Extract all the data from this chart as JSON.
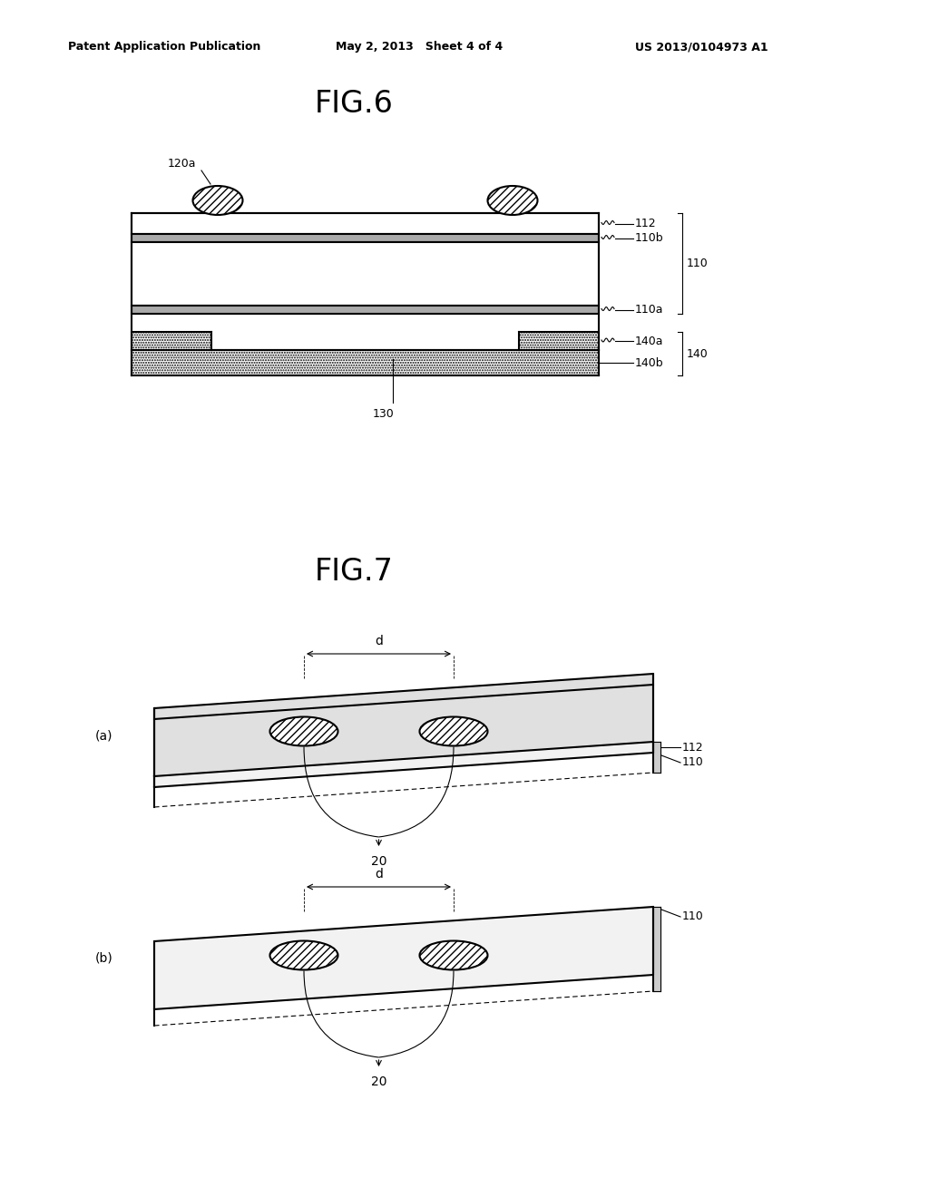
{
  "bg_color": "#ffffff",
  "header_left": "Patent Application Publication",
  "header_mid": "May 2, 2013   Sheet 4 of 4",
  "header_right": "US 2013/0104973 A1",
  "fig6_title": "FIG.6",
  "fig7_title": "FIG.7",
  "label_120a": "120a",
  "label_112": "112",
  "label_110b": "110b",
  "label_110": "110",
  "label_110a": "110a",
  "label_140a": "140a",
  "label_140": "140",
  "label_140b": "140b",
  "label_130": "130",
  "label_d": "d",
  "label_20": "20",
  "label_a": "(a)",
  "label_b": "(b)"
}
